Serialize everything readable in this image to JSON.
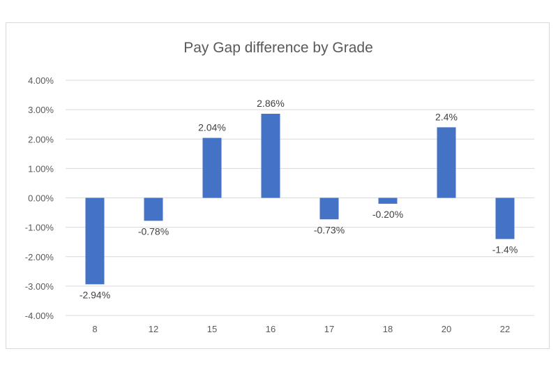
{
  "chart_data": {
    "type": "bar",
    "title": "Pay Gap difference by Grade",
    "xlabel": "",
    "ylabel": "",
    "categories": [
      "8",
      "12",
      "15",
      "16",
      "17",
      "18",
      "20",
      "22"
    ],
    "values": [
      -2.94,
      -0.78,
      2.04,
      2.86,
      -0.73,
      -0.2,
      2.4,
      -1.4
    ],
    "data_labels": [
      "-2.94%",
      "-0.78%",
      "2.04%",
      "2.86%",
      "-0.73%",
      "-0.20%",
      "2.4%",
      "-1.4%"
    ],
    "ylim": [
      -4,
      4
    ],
    "yticks": [
      4,
      3,
      2,
      1,
      0,
      -1,
      -2,
      -3,
      -4
    ],
    "ytick_labels": [
      "4.00%",
      "3.00%",
      "2.00%",
      "1.00%",
      "0.00%",
      "-1.00%",
      "-2.00%",
      "-3.00%",
      "-4.00%"
    ],
    "grid": true,
    "legend": "none",
    "bar_color": "#4472c4",
    "grid_color": "#d9d9d9"
  }
}
